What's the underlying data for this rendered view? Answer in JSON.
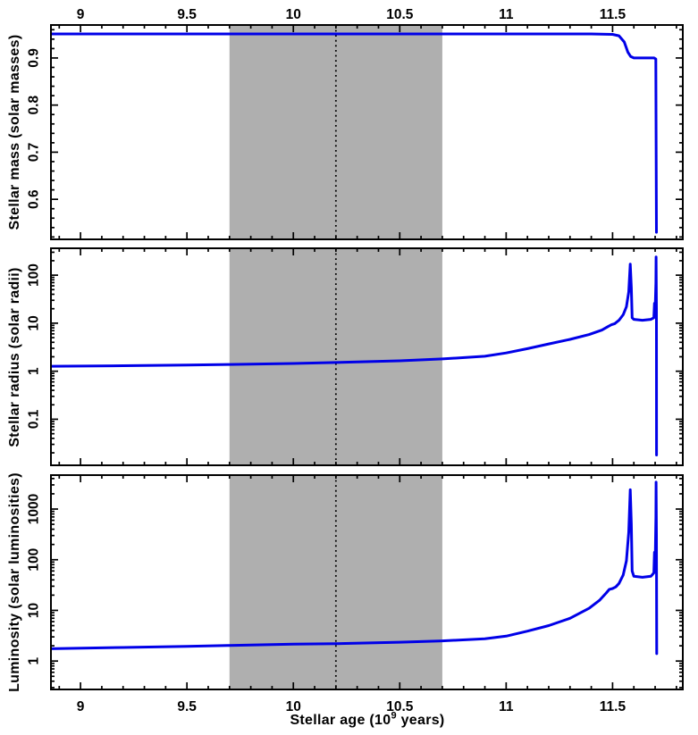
{
  "figure": {
    "background": "#ffffff",
    "frame_color": "#000000",
    "text_color": "#000000"
  },
  "chart_data": {
    "type": "line",
    "title": "",
    "line_color": "#0000e8",
    "x_axis": {
      "label_parts": {
        "prefix": "Stellar age (10",
        "sup": "9",
        "suffix": " years)"
      },
      "min": 8.861,
      "max": 11.83,
      "major_ticks": [
        9,
        9.5,
        10,
        10.5,
        11,
        11.5
      ],
      "major_tick_labels": [
        "9",
        "9.5",
        "10",
        "10.5",
        "11",
        "11.5"
      ],
      "minor_step": 0.1,
      "labels_on_top": true,
      "labels_on_bottom": true
    },
    "shaded_band": {
      "x_start": 9.7,
      "x_end": 10.7,
      "color": "#afafaf"
    },
    "dotted_marker_x": 10.2,
    "grid": false,
    "legend": false,
    "panels": [
      {
        "id": "mass",
        "ylabel": "Stellar mass (solar masses)",
        "yscale": "linear",
        "ylim": [
          0.515,
          0.97
        ],
        "ytick_values": [
          0.6,
          0.7,
          0.8,
          0.9
        ],
        "ytick_labels": [
          "0.6",
          "0.7",
          "0.8",
          "0.9"
        ],
        "y_minor_step": 0.02,
        "series_name": "stellar mass (solar masses)",
        "points": [
          [
            8.86,
            0.951
          ],
          [
            9.5,
            0.951
          ],
          [
            10.2,
            0.951
          ],
          [
            11.0,
            0.951
          ],
          [
            11.4,
            0.951
          ],
          [
            11.5,
            0.95
          ],
          [
            11.53,
            0.947
          ],
          [
            11.555,
            0.934
          ],
          [
            11.572,
            0.912
          ],
          [
            11.585,
            0.903
          ],
          [
            11.6,
            0.9
          ],
          [
            11.65,
            0.9
          ],
          [
            11.695,
            0.9
          ],
          [
            11.703,
            0.898
          ],
          [
            11.706,
            0.53
          ]
        ]
      },
      {
        "id": "radius",
        "ylabel": "Stellar radius (solar radii)",
        "yscale": "log",
        "ylim": [
          0.011,
          363
        ],
        "ytick_values": [
          0.1,
          1,
          10,
          100
        ],
        "ytick_labels": [
          "0.1",
          "1",
          "10",
          "100"
        ],
        "series_name": "stellar radius (solar radii)",
        "points": [
          [
            8.86,
            1.27
          ],
          [
            9.2,
            1.3
          ],
          [
            9.5,
            1.34
          ],
          [
            9.7,
            1.38
          ],
          [
            10.0,
            1.45
          ],
          [
            10.2,
            1.52
          ],
          [
            10.5,
            1.65
          ],
          [
            10.7,
            1.8
          ],
          [
            10.9,
            2.05
          ],
          [
            11.0,
            2.4
          ],
          [
            11.1,
            2.95
          ],
          [
            11.2,
            3.7
          ],
          [
            11.3,
            4.6
          ],
          [
            11.39,
            5.8
          ],
          [
            11.45,
            7.2
          ],
          [
            11.48,
            8.6
          ],
          [
            11.495,
            9.3
          ],
          [
            11.51,
            9.8
          ],
          [
            11.53,
            11.5
          ],
          [
            11.55,
            15
          ],
          [
            11.565,
            22
          ],
          [
            11.576,
            45
          ],
          [
            11.583,
            170
          ],
          [
            11.588,
            55
          ],
          [
            11.592,
            13
          ],
          [
            11.6,
            12
          ],
          [
            11.64,
            11.5
          ],
          [
            11.68,
            12
          ],
          [
            11.694,
            13
          ],
          [
            11.697,
            26
          ],
          [
            11.701,
            27
          ],
          [
            11.7035,
            70
          ],
          [
            11.7045,
            240
          ],
          [
            11.706,
            20
          ],
          [
            11.7065,
            0.018
          ]
        ]
      },
      {
        "id": "luminosity",
        "ylabel": "Luminosity (solar luminosities)",
        "yscale": "log",
        "ylim": [
          0.275,
          4677
        ],
        "ytick_values": [
          1,
          10,
          100,
          1000
        ],
        "ytick_labels": [
          "1",
          "10",
          "100",
          "1000"
        ],
        "series_name": "luminosity (solar luminosities)",
        "points": [
          [
            8.86,
            1.75
          ],
          [
            9.2,
            1.85
          ],
          [
            9.5,
            1.95
          ],
          [
            9.7,
            2.03
          ],
          [
            10.0,
            2.15
          ],
          [
            10.2,
            2.2
          ],
          [
            10.5,
            2.35
          ],
          [
            10.7,
            2.5
          ],
          [
            10.9,
            2.75
          ],
          [
            11.0,
            3.1
          ],
          [
            11.1,
            3.9
          ],
          [
            11.2,
            5.0
          ],
          [
            11.3,
            7.0
          ],
          [
            11.39,
            11
          ],
          [
            11.44,
            16
          ],
          [
            11.47,
            22
          ],
          [
            11.485,
            26
          ],
          [
            11.5,
            27
          ],
          [
            11.515,
            29
          ],
          [
            11.53,
            34
          ],
          [
            11.55,
            50
          ],
          [
            11.565,
            95
          ],
          [
            11.576,
            350
          ],
          [
            11.583,
            2400
          ],
          [
            11.588,
            500
          ],
          [
            11.592,
            60
          ],
          [
            11.6,
            47
          ],
          [
            11.64,
            45
          ],
          [
            11.68,
            47
          ],
          [
            11.694,
            55
          ],
          [
            11.697,
            140
          ],
          [
            11.701,
            145
          ],
          [
            11.7035,
            700
          ],
          [
            11.7045,
            3400
          ],
          [
            11.706,
            300
          ],
          [
            11.7075,
            1.4
          ]
        ]
      }
    ]
  }
}
